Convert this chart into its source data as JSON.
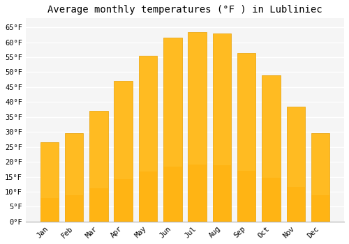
{
  "title": "Average monthly temperatures (°F ) in Lubliniec",
  "months": [
    "Jan",
    "Feb",
    "Mar",
    "Apr",
    "May",
    "Jun",
    "Jul",
    "Aug",
    "Sep",
    "Oct",
    "Nov",
    "Dec"
  ],
  "values": [
    26.5,
    29.5,
    37.0,
    47.0,
    55.5,
    61.5,
    63.5,
    63.0,
    56.5,
    49.0,
    38.5,
    29.5
  ],
  "bar_color_top": "#FFBB22",
  "bar_color_bottom": "#FFAA00",
  "bar_edge_color": "#E8A000",
  "ylim": [
    0,
    68
  ],
  "yticks": [
    0,
    5,
    10,
    15,
    20,
    25,
    30,
    35,
    40,
    45,
    50,
    55,
    60,
    65
  ],
  "background_color": "#ffffff",
  "plot_bg_color": "#f5f5f5",
  "grid_color": "#ffffff",
  "title_fontsize": 10,
  "tick_fontsize": 7.5,
  "font_family": "monospace"
}
